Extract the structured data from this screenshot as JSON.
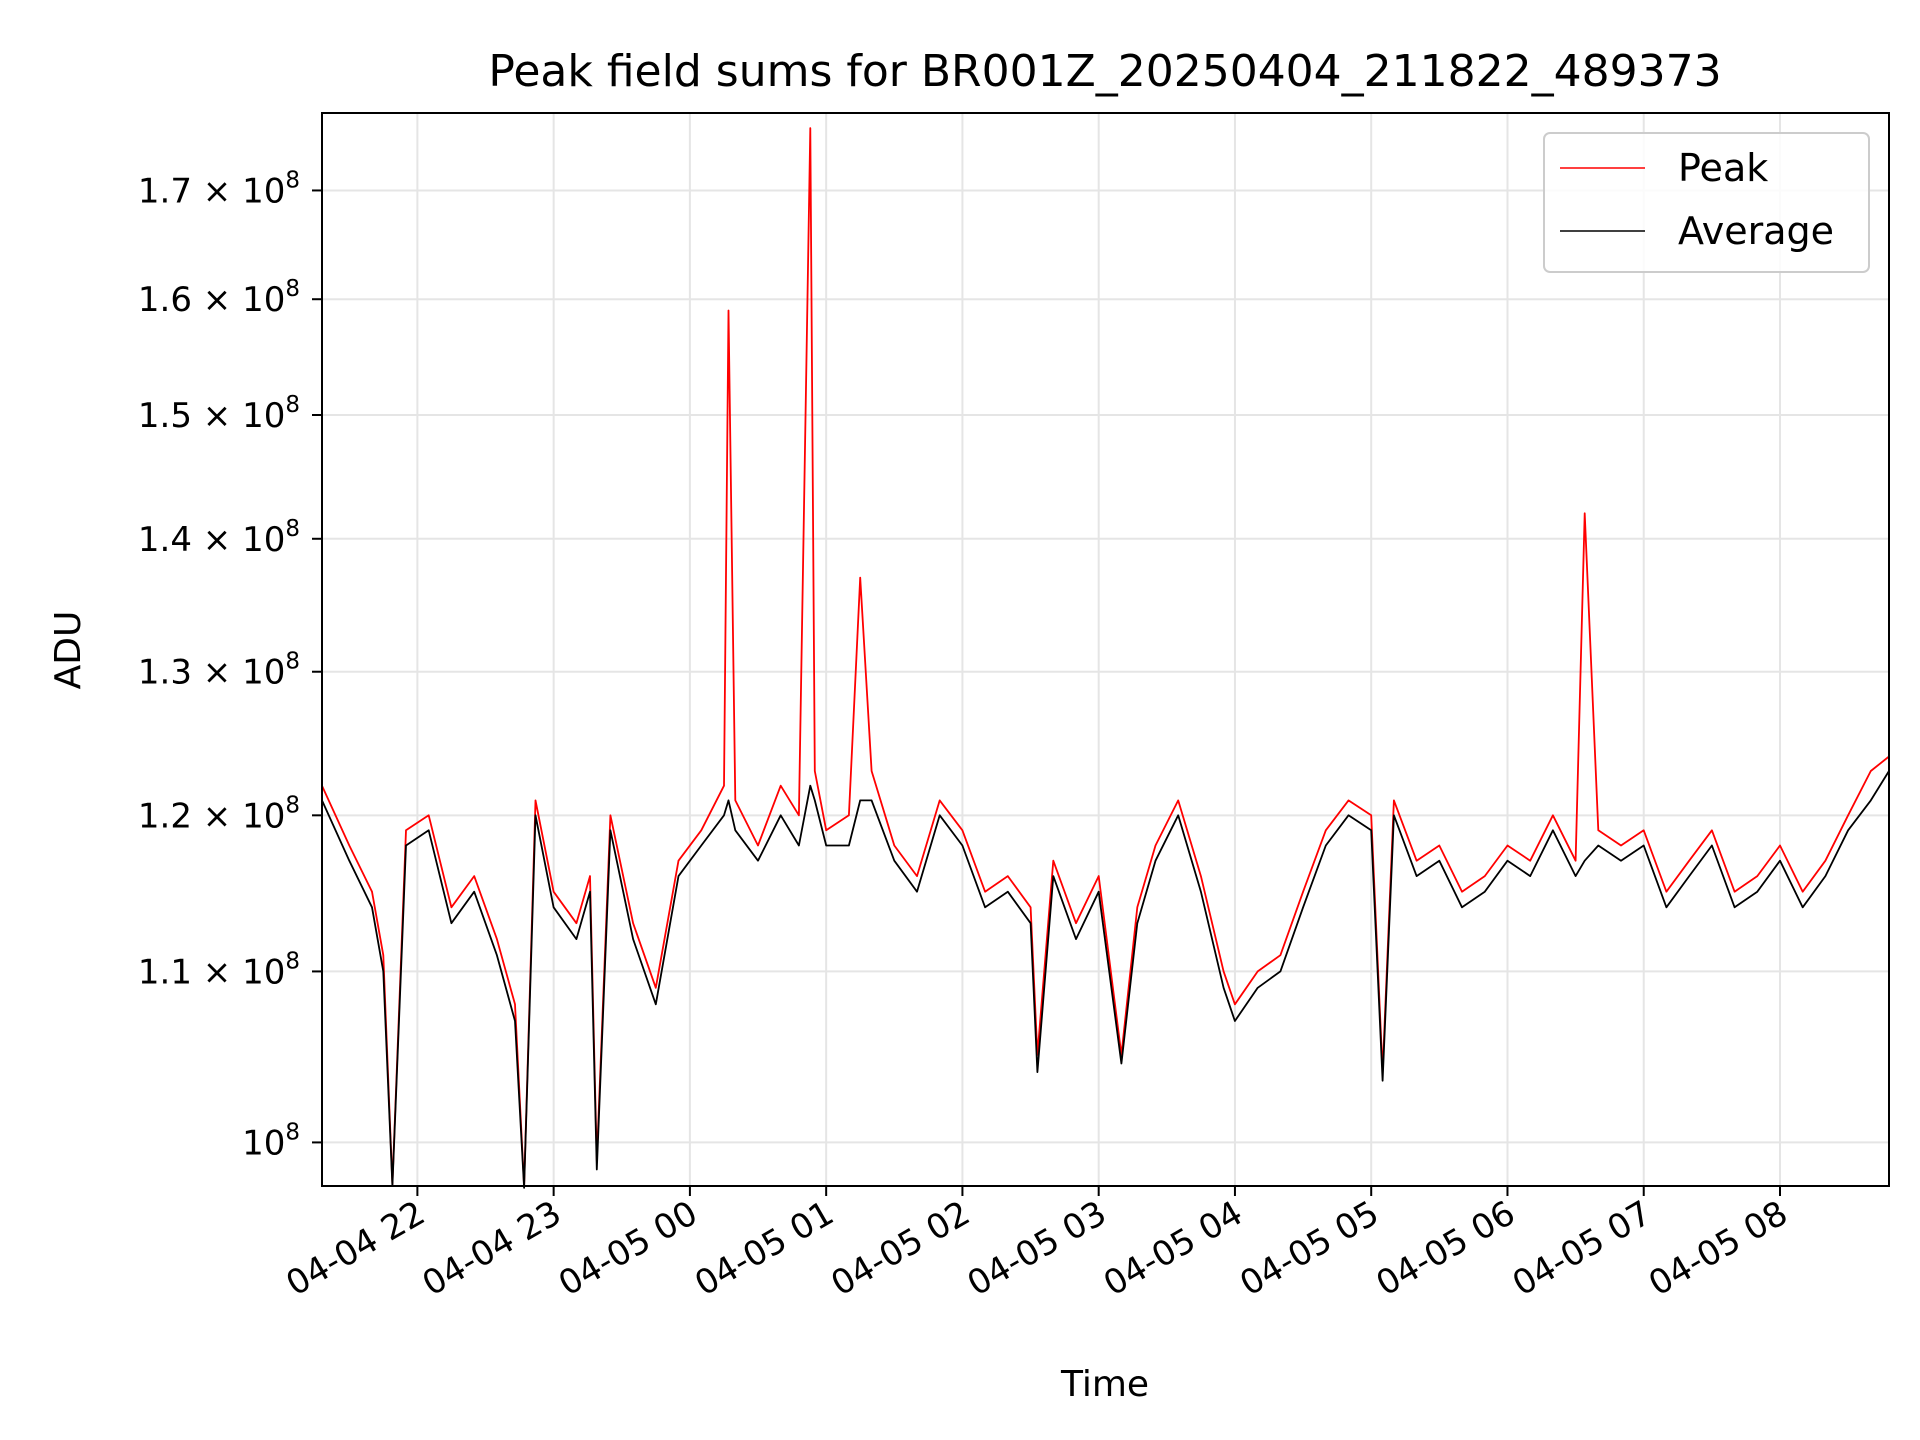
{
  "chart_data": {
    "type": "line",
    "title": "Peak field sums for BR001Z_20250404_211822_489373",
    "xlabel": "Time",
    "ylabel": "ADU",
    "y_scale": "log",
    "xlim": [
      "2025-04-04 21:18",
      "2025-04-05 08:48"
    ],
    "ylim": [
      97600000,
      177500000
    ],
    "grid": true,
    "legend_position": "top-right",
    "x_ticks": [
      {
        "time": "2025-04-04 22:00",
        "label": "04-04 22"
      },
      {
        "time": "2025-04-04 23:00",
        "label": "04-04 23"
      },
      {
        "time": "2025-04-05 00:00",
        "label": "04-05 00"
      },
      {
        "time": "2025-04-05 01:00",
        "label": "04-05 01"
      },
      {
        "time": "2025-04-05 02:00",
        "label": "04-05 02"
      },
      {
        "time": "2025-04-05 03:00",
        "label": "04-05 03"
      },
      {
        "time": "2025-04-05 04:00",
        "label": "04-05 04"
      },
      {
        "time": "2025-04-05 05:00",
        "label": "04-05 05"
      },
      {
        "time": "2025-04-05 06:00",
        "label": "04-05 06"
      },
      {
        "time": "2025-04-05 07:00",
        "label": "04-05 07"
      },
      {
        "time": "2025-04-05 08:00",
        "label": "04-05 08"
      }
    ],
    "y_ticks": [
      {
        "value": 100000000,
        "label": "10",
        "exp": "8"
      },
      {
        "value": 110000000,
        "label": "1.1 × 10",
        "exp": "8"
      },
      {
        "value": 120000000,
        "label": "1.2 × 10",
        "exp": "8"
      },
      {
        "value": 130000000,
        "label": "1.3 × 10",
        "exp": "8"
      },
      {
        "value": 140000000,
        "label": "1.4 × 10",
        "exp": "8"
      },
      {
        "value": 150000000,
        "label": "1.5 × 10",
        "exp": "8"
      },
      {
        "value": 160000000,
        "label": "1.6 × 10",
        "exp": "8"
      },
      {
        "value": 170000000,
        "label": "1.7 × 10",
        "exp": "8"
      }
    ],
    "series": [
      {
        "name": "Peak",
        "color": "#ff0000",
        "x": [
          "2025-04-04 21:18",
          "2025-04-04 21:30",
          "2025-04-04 21:40",
          "2025-04-04 21:45",
          "2025-04-04 21:49",
          "2025-04-04 21:55",
          "2025-04-04 22:05",
          "2025-04-04 22:15",
          "2025-04-04 22:25",
          "2025-04-04 22:35",
          "2025-04-04 22:43",
          "2025-04-04 22:47",
          "2025-04-04 22:52",
          "2025-04-04 23:00",
          "2025-04-04 23:10",
          "2025-04-04 23:16",
          "2025-04-04 23:19",
          "2025-04-04 23:25",
          "2025-04-04 23:35",
          "2025-04-04 23:45",
          "2025-04-04 23:55",
          "2025-04-05 00:05",
          "2025-04-05 00:15",
          "2025-04-05 00:17",
          "2025-04-05 00:20",
          "2025-04-05 00:30",
          "2025-04-05 00:40",
          "2025-04-05 00:48",
          "2025-04-05 00:53",
          "2025-04-05 00:55",
          "2025-04-05 01:00",
          "2025-04-05 01:10",
          "2025-04-05 01:15",
          "2025-04-05 01:20",
          "2025-04-05 01:30",
          "2025-04-05 01:40",
          "2025-04-05 01:50",
          "2025-04-05 02:00",
          "2025-04-05 02:10",
          "2025-04-05 02:20",
          "2025-04-05 02:30",
          "2025-04-05 02:33",
          "2025-04-05 02:40",
          "2025-04-05 02:50",
          "2025-04-05 03:00",
          "2025-04-05 03:10",
          "2025-04-05 03:17",
          "2025-04-05 03:25",
          "2025-04-05 03:35",
          "2025-04-05 03:45",
          "2025-04-05 03:55",
          "2025-04-05 04:00",
          "2025-04-05 04:10",
          "2025-04-05 04:20",
          "2025-04-05 04:30",
          "2025-04-05 04:40",
          "2025-04-05 04:50",
          "2025-04-05 05:00",
          "2025-04-05 05:05",
          "2025-04-05 05:10",
          "2025-04-05 05:20",
          "2025-04-05 05:30",
          "2025-04-05 05:40",
          "2025-04-05 05:50",
          "2025-04-05 06:00",
          "2025-04-05 06:10",
          "2025-04-05 06:20",
          "2025-04-05 06:30",
          "2025-04-05 06:34",
          "2025-04-05 06:40",
          "2025-04-05 06:50",
          "2025-04-05 07:00",
          "2025-04-05 07:10",
          "2025-04-05 07:20",
          "2025-04-05 07:30",
          "2025-04-05 07:40",
          "2025-04-05 07:50",
          "2025-04-05 08:00",
          "2025-04-05 08:10",
          "2025-04-05 08:20",
          "2025-04-05 08:30",
          "2025-04-05 08:40",
          "2025-04-05 08:48"
        ],
        "values": [
          122000000,
          118000000,
          115000000,
          111000000,
          97700000,
          119000000,
          120000000,
          114000000,
          116000000,
          112000000,
          108000000,
          97600000,
          121000000,
          115000000,
          113000000,
          116000000,
          99000000,
          120000000,
          113000000,
          109000000,
          117000000,
          119000000,
          122000000,
          159000000,
          121000000,
          118000000,
          122000000,
          120000000,
          176000000,
          123000000,
          119000000,
          120000000,
          137000000,
          123000000,
          118000000,
          116000000,
          121000000,
          119000000,
          115000000,
          116000000,
          114000000,
          105000000,
          117000000,
          113000000,
          116000000,
          105000000,
          114000000,
          118000000,
          121000000,
          116000000,
          110000000,
          108000000,
          110000000,
          111000000,
          115000000,
          119000000,
          121000000,
          120000000,
          104000000,
          121000000,
          117000000,
          118000000,
          115000000,
          116000000,
          118000000,
          117000000,
          120000000,
          117000000,
          142000000,
          119000000,
          118000000,
          119000000,
          115000000,
          117000000,
          119000000,
          115000000,
          116000000,
          118000000,
          115000000,
          117000000,
          120000000,
          123000000,
          124000000
        ]
      },
      {
        "name": "Average",
        "color": "#000000",
        "x": [
          "2025-04-04 21:18",
          "2025-04-04 21:30",
          "2025-04-04 21:40",
          "2025-04-04 21:45",
          "2025-04-04 21:49",
          "2025-04-04 21:55",
          "2025-04-04 22:05",
          "2025-04-04 22:15",
          "2025-04-04 22:25",
          "2025-04-04 22:35",
          "2025-04-04 22:43",
          "2025-04-04 22:47",
          "2025-04-04 22:52",
          "2025-04-04 23:00",
          "2025-04-04 23:10",
          "2025-04-04 23:16",
          "2025-04-04 23:19",
          "2025-04-04 23:25",
          "2025-04-04 23:35",
          "2025-04-04 23:45",
          "2025-04-04 23:55",
          "2025-04-05 00:05",
          "2025-04-05 00:15",
          "2025-04-05 00:17",
          "2025-04-05 00:20",
          "2025-04-05 00:30",
          "2025-04-05 00:40",
          "2025-04-05 00:48",
          "2025-04-05 00:53",
          "2025-04-05 00:55",
          "2025-04-05 01:00",
          "2025-04-05 01:10",
          "2025-04-05 01:15",
          "2025-04-05 01:20",
          "2025-04-05 01:30",
          "2025-04-05 01:40",
          "2025-04-05 01:50",
          "2025-04-05 02:00",
          "2025-04-05 02:10",
          "2025-04-05 02:20",
          "2025-04-05 02:30",
          "2025-04-05 02:33",
          "2025-04-05 02:40",
          "2025-04-05 02:50",
          "2025-04-05 03:00",
          "2025-04-05 03:10",
          "2025-04-05 03:17",
          "2025-04-05 03:25",
          "2025-04-05 03:35",
          "2025-04-05 03:45",
          "2025-04-05 03:55",
          "2025-04-05 04:00",
          "2025-04-05 04:10",
          "2025-04-05 04:20",
          "2025-04-05 04:30",
          "2025-04-05 04:40",
          "2025-04-05 04:50",
          "2025-04-05 05:00",
          "2025-04-05 05:05",
          "2025-04-05 05:10",
          "2025-04-05 05:20",
          "2025-04-05 05:30",
          "2025-04-05 05:40",
          "2025-04-05 05:50",
          "2025-04-05 06:00",
          "2025-04-05 06:10",
          "2025-04-05 06:20",
          "2025-04-05 06:30",
          "2025-04-05 06:34",
          "2025-04-05 06:40",
          "2025-04-05 06:50",
          "2025-04-05 07:00",
          "2025-04-05 07:10",
          "2025-04-05 07:20",
          "2025-04-05 07:30",
          "2025-04-05 07:40",
          "2025-04-05 07:50",
          "2025-04-05 08:00",
          "2025-04-05 08:10",
          "2025-04-05 08:20",
          "2025-04-05 08:30",
          "2025-04-05 08:40",
          "2025-04-05 08:48"
        ],
        "values": [
          121000000,
          117000000,
          114000000,
          110000000,
          97600000,
          118000000,
          119000000,
          113000000,
          115000000,
          111000000,
          107000000,
          97500000,
          120000000,
          114000000,
          112000000,
          115000000,
          98500000,
          119000000,
          112000000,
          108000000,
          116000000,
          118000000,
          120000000,
          121000000,
          119000000,
          117000000,
          120000000,
          118000000,
          122000000,
          121000000,
          118000000,
          118000000,
          121000000,
          121000000,
          117000000,
          115000000,
          120000000,
          118000000,
          114000000,
          115000000,
          113000000,
          104000000,
          116000000,
          112000000,
          115000000,
          104500000,
          113000000,
          117000000,
          120000000,
          115000000,
          109000000,
          107000000,
          109000000,
          110000000,
          114000000,
          118000000,
          120000000,
          119000000,
          103500000,
          120000000,
          116000000,
          117000000,
          114000000,
          115000000,
          117000000,
          116000000,
          119000000,
          116000000,
          117000000,
          118000000,
          117000000,
          118000000,
          114000000,
          116000000,
          118000000,
          114000000,
          115000000,
          117000000,
          114000000,
          116000000,
          119000000,
          121000000,
          123000000
        ]
      }
    ]
  }
}
